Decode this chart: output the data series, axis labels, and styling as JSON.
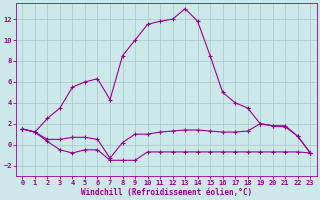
{
  "xlabel": "Windchill (Refroidissement éolien,°C)",
  "background_color": "#cde8e8",
  "grid_color": "#aacfcf",
  "line_color": "#990099",
  "xlim": [
    -0.5,
    23.5
  ],
  "ylim": [
    -3.0,
    13.5
  ],
  "xticks": [
    0,
    1,
    2,
    3,
    4,
    5,
    6,
    7,
    8,
    9,
    10,
    11,
    12,
    13,
    14,
    15,
    16,
    17,
    18,
    19,
    20,
    21,
    22,
    23
  ],
  "yticks": [
    -2,
    0,
    2,
    4,
    6,
    8,
    10,
    12
  ],
  "line1_x": [
    0,
    1,
    2,
    3,
    4,
    5,
    6,
    7,
    8,
    9,
    10,
    11,
    12,
    13,
    14,
    15,
    16,
    17,
    18,
    19,
    20,
    21,
    22,
    23
  ],
  "line1_y": [
    1.5,
    1.2,
    2.5,
    3.5,
    5.5,
    6.0,
    6.3,
    4.3,
    8.5,
    10.0,
    11.5,
    11.8,
    12.0,
    13.0,
    11.8,
    8.5,
    5.0,
    4.0,
    3.5,
    2.0,
    1.8,
    1.7,
    0.8,
    -0.8
  ],
  "line2_x": [
    0,
    1,
    2,
    3,
    4,
    5,
    6,
    7,
    8,
    9,
    10,
    11,
    12,
    13,
    14,
    15,
    16,
    17,
    18,
    19,
    20,
    21,
    22,
    23
  ],
  "line2_y": [
    1.5,
    1.2,
    0.5,
    0.5,
    0.7,
    0.7,
    0.5,
    -1.3,
    0.2,
    1.0,
    1.0,
    1.2,
    1.3,
    1.4,
    1.4,
    1.3,
    1.2,
    1.2,
    1.3,
    2.0,
    1.8,
    1.8,
    0.8,
    -0.8
  ],
  "line3_x": [
    0,
    1,
    2,
    3,
    4,
    5,
    6,
    7,
    8,
    9,
    10,
    11,
    12,
    13,
    14,
    15,
    16,
    17,
    18,
    19,
    20,
    21,
    22,
    23
  ],
  "line3_y": [
    1.5,
    1.2,
    0.3,
    -0.5,
    -0.8,
    -0.5,
    -0.5,
    -1.5,
    -1.5,
    -1.5,
    -0.7,
    -0.7,
    -0.7,
    -0.7,
    -0.7,
    -0.7,
    -0.7,
    -0.7,
    -0.7,
    -0.7,
    -0.7,
    -0.7,
    -0.7,
    -0.8
  ]
}
